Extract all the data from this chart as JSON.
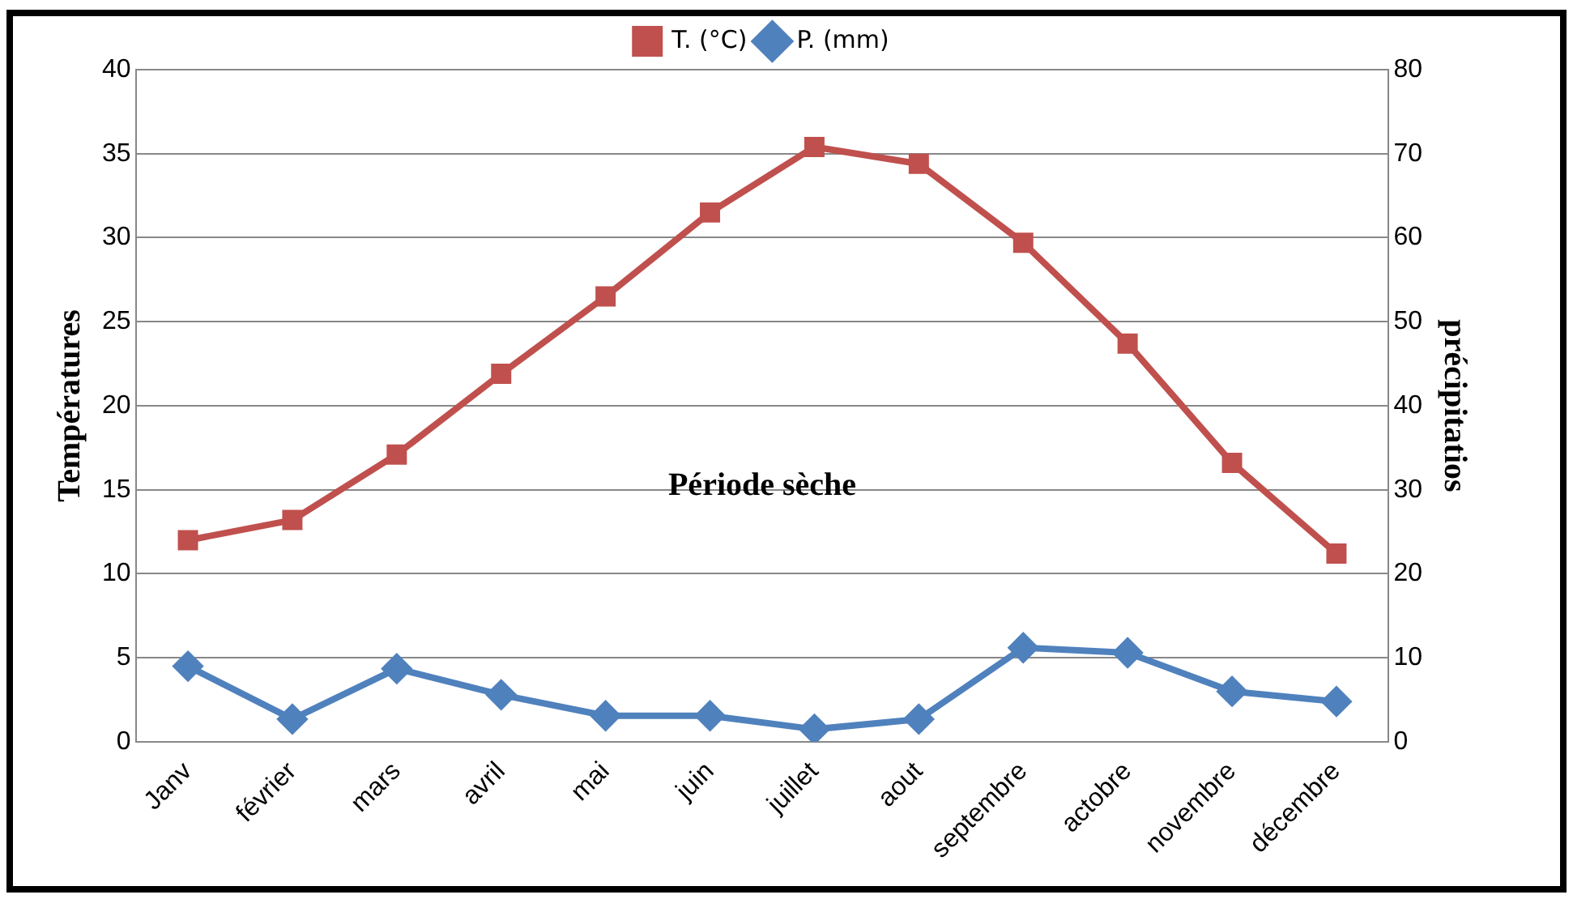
{
  "chart_data": {
    "type": "line",
    "ylabel": "Températures",
    "y2label": "précipitatios",
    "categories": [
      "Janv",
      "février",
      "mars",
      "avril",
      "mai",
      "juin",
      "juillet",
      "aout",
      "septembre",
      "actobre",
      "novembre",
      "décembre"
    ],
    "series": [
      {
        "name": "T. (°C)",
        "color": "#c0504d",
        "marker": "square",
        "values": [
          12.0,
          13.2,
          17.1,
          21.9,
          26.5,
          31.5,
          35.4,
          34.4,
          29.7,
          23.7,
          16.6,
          11.2
        ]
      },
      {
        "name": "P. (mm)",
        "color": "#4f81bd",
        "marker": "diamond",
        "axis": "y2",
        "values": [
          9.0,
          2.7,
          8.7,
          5.6,
          3.1,
          3.1,
          1.5,
          2.7,
          11.2,
          10.6,
          6.0,
          4.8
        ]
      }
    ],
    "ylim": [
      0,
      40
    ],
    "yticks": [
      0,
      5,
      10,
      15,
      20,
      25,
      30,
      35,
      40
    ],
    "y2lim": [
      0,
      80
    ],
    "y2ticks": [
      0,
      10,
      20,
      30,
      40,
      50,
      60,
      70,
      80
    ],
    "grid": "y",
    "legend": "top",
    "line_style": "solid",
    "annotations": [
      "Période sèche"
    ]
  }
}
